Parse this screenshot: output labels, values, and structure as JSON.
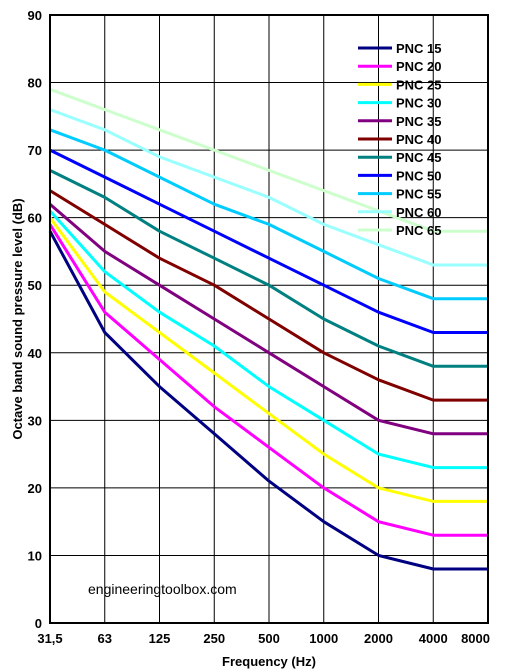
{
  "chart_data": {
    "type": "line",
    "xlabel": "Frequency (Hz)",
    "ylabel": "Octave band sound pressure level (dB)",
    "categories": [
      "31,5",
      "63",
      "125",
      "250",
      "500",
      "1000",
      "2000",
      "4000",
      "8000"
    ],
    "ylim": [
      0,
      90
    ],
    "yticks": [
      0,
      10,
      20,
      30,
      40,
      50,
      60,
      70,
      80,
      90
    ],
    "grid": true,
    "legend_position": "top-right",
    "watermark": "engineeringtoolbox.com",
    "series": [
      {
        "name": "PNC 15",
        "color": "#000080",
        "values": [
          58,
          43,
          35,
          28,
          21,
          15,
          10,
          8,
          8
        ]
      },
      {
        "name": "PNC 20",
        "color": "#ff00ff",
        "values": [
          59,
          46,
          39,
          32,
          26,
          20,
          15,
          13,
          13
        ]
      },
      {
        "name": "PNC 25",
        "color": "#ffff00",
        "values": [
          60,
          49,
          43,
          37,
          31,
          25,
          20,
          18,
          18
        ]
      },
      {
        "name": "PNC 30",
        "color": "#00ffff",
        "values": [
          61,
          52,
          46,
          41,
          35,
          30,
          25,
          23,
          23
        ]
      },
      {
        "name": "PNC 35",
        "color": "#800080",
        "values": [
          62,
          55,
          50,
          45,
          40,
          35,
          30,
          28,
          28
        ]
      },
      {
        "name": "PNC 40",
        "color": "#800000",
        "values": [
          64,
          59,
          54,
          50,
          45,
          40,
          36,
          33,
          33
        ]
      },
      {
        "name": "PNC 45",
        "color": "#008080",
        "values": [
          67,
          63,
          58,
          54,
          50,
          45,
          41,
          38,
          38
        ]
      },
      {
        "name": "PNC 50",
        "color": "#0000ff",
        "values": [
          70,
          66,
          62,
          58,
          54,
          50,
          46,
          43,
          43
        ]
      },
      {
        "name": "PNC 55",
        "color": "#00ccff",
        "values": [
          73,
          70,
          66,
          62,
          59,
          55,
          51,
          48,
          48
        ]
      },
      {
        "name": "PNC 60",
        "color": "#99ffff",
        "values": [
          76,
          73,
          69,
          66,
          63,
          59,
          56,
          53,
          53
        ]
      },
      {
        "name": "PNC 65",
        "color": "#ccffcc",
        "values": [
          79,
          76,
          73,
          70,
          67,
          64,
          61,
          58,
          58
        ]
      }
    ]
  }
}
